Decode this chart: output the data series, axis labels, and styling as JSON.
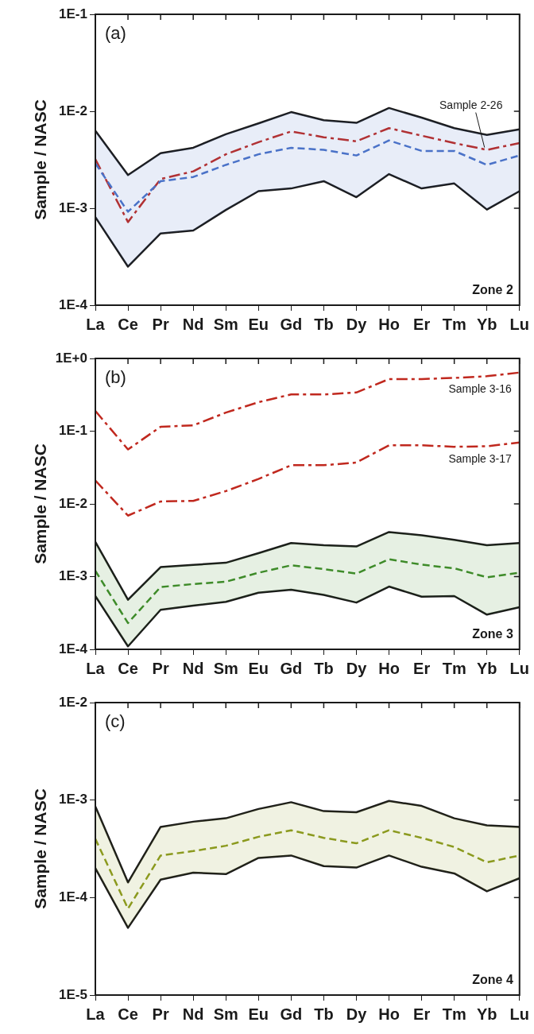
{
  "chart_data": [
    {
      "type": "line",
      "ylabel": "Sample / NASC",
      "log": true,
      "grid": false,
      "legend": false,
      "marker": "none",
      "categories": [
        "La",
        "Ce",
        "Pr",
        "Nd",
        "Sm",
        "Eu",
        "Gd",
        "Tb",
        "Dy",
        "Ho",
        "Er",
        "Tm",
        "Yb",
        "Lu"
      ],
      "ylim": [
        0.0001,
        0.1
      ],
      "yticks": [
        {
          "value": 0.0001,
          "label": "1E-4"
        },
        {
          "value": 0.001,
          "label": "1E-3"
        },
        {
          "value": 0.01,
          "label": "1E-2"
        },
        {
          "value": 0.1,
          "label": "1E-1"
        }
      ],
      "annotations": [
        "(a)",
        "Zone 2",
        {
          "text": "Sample 2-26",
          "x": "Yb",
          "y": 0.004
        }
      ],
      "series": [
        {
          "color": "#4a72c8",
          "line_style": "dashed",
          "values": [
            0.0029,
            0.00092,
            0.0019,
            0.0021,
            0.0028,
            0.0036,
            0.0042,
            0.004,
            0.0035,
            0.005,
            0.0039,
            0.0039,
            0.0028,
            0.0035
          ],
          "lower": [
            0.00081,
            0.00025,
            0.00055,
            0.00059,
            0.00096,
            0.0015,
            0.0016,
            0.0019,
            0.0013,
            0.00225,
            0.0016,
            0.0018,
            0.00097,
            0.0015
          ],
          "upper": [
            0.0063,
            0.0022,
            0.0037,
            0.0042,
            0.0058,
            0.0075,
            0.0098,
            0.0081,
            0.0076,
            0.0108,
            0.0086,
            0.0067,
            0.0057,
            0.0065
          ]
        },
        {
          "color": "#1a1a1a",
          "line_style": "solid",
          "values": [
            0.00081,
            0.00025,
            0.00055,
            0.00059,
            0.00096,
            0.0015,
            0.0016,
            0.0019,
            0.0013,
            0.00225,
            0.0016,
            0.0018,
            0.00097,
            0.0015
          ]
        },
        {
          "color": "#1a1a1a",
          "line_style": "solid",
          "values": [
            0.0063,
            0.0022,
            0.0037,
            0.0042,
            0.0058,
            0.0075,
            0.0098,
            0.0081,
            0.0076,
            0.0108,
            0.0086,
            0.0067,
            0.0057,
            0.0065
          ]
        },
        {
          "color": "#c0281e",
          "line_style": "dashdot",
          "values": [
            0.0032,
            0.00072,
            0.002,
            0.0024,
            0.0036,
            0.0048,
            0.0062,
            0.0054,
            0.0049,
            0.0067,
            0.0056,
            0.0047,
            0.004,
            0.0047
          ]
        }
      ]
    },
    {
      "type": "line",
      "ylabel": "Sample / NASC",
      "log": true,
      "grid": false,
      "legend": false,
      "marker": "none",
      "categories": [
        "La",
        "Ce",
        "Pr",
        "Nd",
        "Sm",
        "Eu",
        "Gd",
        "Tb",
        "Dy",
        "Ho",
        "Er",
        "Tm",
        "Yb",
        "Lu"
      ],
      "ylim": [
        0.0001,
        1
      ],
      "yticks": [
        {
          "value": 0.0001,
          "label": "1E-4"
        },
        {
          "value": 0.001,
          "label": "1E-3"
        },
        {
          "value": 0.01,
          "label": "1E-2"
        },
        {
          "value": 0.1,
          "label": "1E-1"
        },
        {
          "value": 1,
          "label": "1E+0"
        }
      ],
      "annotations": [
        "(b)",
        "Zone 3"
      ],
      "series": [
        {
          "color": "#3e8c2a",
          "line_style": "dashed",
          "values": [
            0.0012,
            0.00023,
            0.00072,
            0.00079,
            0.00085,
            0.00113,
            0.00143,
            0.00127,
            0.0011,
            0.00173,
            0.00146,
            0.0013,
            0.00098,
            0.00113
          ],
          "lower": [
            0.00054,
            0.00011,
            0.00035,
            0.0004,
            0.00045,
            0.0006,
            0.00066,
            0.00056,
            0.00044,
            0.00073,
            0.00053,
            0.00054,
            0.0003,
            0.00038
          ],
          "upper": [
            0.003,
            0.00048,
            0.00135,
            0.00145,
            0.00155,
            0.0021,
            0.0029,
            0.0027,
            0.0026,
            0.0041,
            0.0037,
            0.0032,
            0.0027,
            0.0029
          ]
        },
        {
          "color": "#1a1a1a",
          "line_style": "solid",
          "values": [
            0.00054,
            0.00011,
            0.00035,
            0.0004,
            0.00045,
            0.0006,
            0.00066,
            0.00056,
            0.00044,
            0.00073,
            0.00053,
            0.00054,
            0.0003,
            0.00038
          ]
        },
        {
          "color": "#1a1a1a",
          "line_style": "solid",
          "values": [
            0.003,
            0.00048,
            0.00135,
            0.00145,
            0.00155,
            0.0021,
            0.0029,
            0.0027,
            0.0026,
            0.0041,
            0.0037,
            0.0032,
            0.0027,
            0.0029
          ]
        },
        {
          "name": "Sample 3-16",
          "color": "#c0281e",
          "line_style": "dashdot",
          "values": [
            0.19,
            0.056,
            0.115,
            0.12,
            0.18,
            0.25,
            0.32,
            0.32,
            0.34,
            0.52,
            0.52,
            0.54,
            0.57,
            0.64
          ]
        },
        {
          "name": "Sample 3-17",
          "color": "#c0281e",
          "line_style": "dashdot",
          "values": [
            0.021,
            0.0069,
            0.0108,
            0.011,
            0.015,
            0.022,
            0.034,
            0.034,
            0.037,
            0.064,
            0.064,
            0.061,
            0.062,
            0.07
          ]
        }
      ]
    },
    {
      "type": "line",
      "ylabel": "Sample / NASC",
      "log": true,
      "grid": false,
      "legend": false,
      "marker": "none",
      "categories": [
        "La",
        "Ce",
        "Pr",
        "Nd",
        "Sm",
        "Eu",
        "Gd",
        "Tb",
        "Dy",
        "Ho",
        "Er",
        "Tm",
        "Yb",
        "Lu"
      ],
      "ylim": [
        1e-05,
        0.01
      ],
      "yticks": [
        {
          "value": 1e-05,
          "label": "1E-5"
        },
        {
          "value": 0.0001,
          "label": "1E-4"
        },
        {
          "value": 0.001,
          "label": "1E-3"
        },
        {
          "value": 0.01,
          "label": "1E-2"
        }
      ],
      "annotations": [
        "(c)",
        "Zone 4"
      ],
      "series": [
        {
          "color": "#8c9a1e",
          "line_style": "dashed",
          "values": [
            0.0004,
            7.7e-05,
            0.00027,
            0.0003,
            0.00034,
            0.00042,
            0.00049,
            0.00041,
            0.00036,
            0.00049,
            0.00041,
            0.00033,
            0.00023,
            0.00027
          ],
          "lower": [
            0.0002,
            4.9e-05,
            0.000153,
            0.00018,
            0.000174,
            0.000255,
            0.00027,
            0.00021,
            0.000203,
            0.00027,
            0.000207,
            0.000177,
            0.000116,
            0.000158
          ],
          "upper": [
            0.00086,
            0.000143,
            0.00053,
            0.0006,
            0.00065,
            0.00081,
            0.00095,
            0.00077,
            0.00075,
            0.00098,
            0.00087,
            0.00065,
            0.00055,
            0.00053
          ]
        },
        {
          "color": "#1a1a1a",
          "line_style": "solid",
          "values": [
            0.0002,
            4.9e-05,
            0.000153,
            0.00018,
            0.000174,
            0.000255,
            0.00027,
            0.00021,
            0.000203,
            0.00027,
            0.000207,
            0.000177,
            0.000116,
            0.000158
          ]
        },
        {
          "color": "#1a1a1a",
          "line_style": "solid",
          "values": [
            0.00086,
            0.000143,
            0.00053,
            0.0006,
            0.00065,
            0.00081,
            0.00095,
            0.00077,
            0.00075,
            0.00098,
            0.00087,
            0.00065,
            0.00055,
            0.00053
          ]
        }
      ]
    }
  ]
}
